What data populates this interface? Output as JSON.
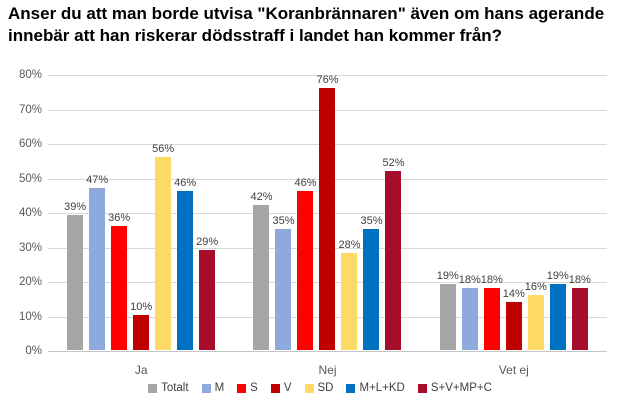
{
  "chart": {
    "title": "Anser du att man borde utvisa \"Koranbrännaren\" även om hans agerande innebär att han riskerar dödsstraff i landet han kommer från?"
  },
  "chart_data": {
    "type": "bar",
    "title": "Anser du att man borde utvisa \"Koranbrännaren\" även om hans agerande innebär att han riskerar dödsstraff i landet han kommer från?",
    "categories": [
      "Ja",
      "Nej",
      "Vet ej"
    ],
    "series": [
      {
        "name": "Totalt",
        "color": "#A6A6A6",
        "values": [
          39,
          42,
          19
        ]
      },
      {
        "name": "M",
        "color": "#8EA9DB",
        "values": [
          47,
          35,
          18
        ]
      },
      {
        "name": "S",
        "color": "#FF0000",
        "values": [
          36,
          46,
          18
        ]
      },
      {
        "name": "V",
        "color": "#C00000",
        "values": [
          10,
          76,
          14
        ]
      },
      {
        "name": "SD",
        "color": "#FFD966",
        "values": [
          56,
          28,
          16
        ]
      },
      {
        "name": "M+L+KD",
        "color": "#0070C0",
        "values": [
          46,
          35,
          19
        ]
      },
      {
        "name": "S+V+MP+C",
        "color": "#A50D2B",
        "values": [
          29,
          52,
          18
        ]
      }
    ],
    "xlabel": "",
    "ylabel": "",
    "ylim": [
      0,
      80
    ],
    "y_ticks": [
      "0%",
      "10%",
      "20%",
      "30%",
      "40%",
      "50%",
      "60%",
      "70%",
      "80%"
    ],
    "value_suffix": "%",
    "grid": true,
    "value_labels_shown": true,
    "legend_position": "bottom",
    "colors": {
      "gridline": "#D9D9D9",
      "axis_line": "#C6C6C6",
      "value_label_text": "#404040",
      "axis_tick_text": "#595959",
      "legend_text": "#404040",
      "title_text": "#000000",
      "background": "#FFFFFF"
    }
  }
}
